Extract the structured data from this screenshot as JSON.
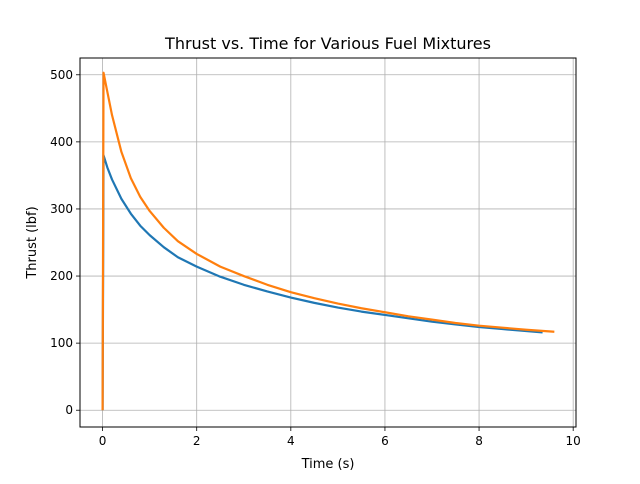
{
  "chart_data": {
    "type": "line",
    "title": "Thrust vs. Time for Various Fuel Mixtures",
    "xlabel": "Time (s)",
    "ylabel": "Thrust (lbf)",
    "xlim": [
      -0.48,
      10.06
    ],
    "ylim": [
      -25,
      525
    ],
    "xticks": [
      0,
      2,
      4,
      6,
      8,
      10
    ],
    "yticks": [
      0,
      100,
      200,
      300,
      400,
      500
    ],
    "grid": true,
    "series": [
      {
        "color": "#1f77b4",
        "x": [
          0,
          0.02,
          0.1,
          0.2,
          0.4,
          0.6,
          0.8,
          1.0,
          1.3,
          1.6,
          2.0,
          2.5,
          3.0,
          3.5,
          4.0,
          4.5,
          5.0,
          5.5,
          6.0,
          6.5,
          7.0,
          7.5,
          8.0,
          8.5,
          9.0,
          9.35
        ],
        "y": [
          0,
          380,
          362,
          344,
          315,
          293,
          275,
          261,
          243,
          228,
          214,
          199,
          187,
          177,
          168,
          160,
          153,
          147,
          142,
          137,
          132,
          128,
          124,
          121,
          118,
          116
        ]
      },
      {
        "color": "#ff7f0e",
        "x": [
          0,
          0.02,
          0.1,
          0.2,
          0.4,
          0.6,
          0.8,
          1.0,
          1.3,
          1.6,
          2.0,
          2.5,
          3.0,
          3.5,
          4.0,
          4.5,
          5.0,
          5.5,
          6.0,
          6.5,
          7.0,
          7.5,
          8.0,
          8.5,
          9.0,
          9.6
        ],
        "y": [
          0,
          503,
          475,
          440,
          385,
          346,
          318,
          297,
          272,
          252,
          233,
          214,
          200,
          187,
          176,
          167,
          159,
          152,
          146,
          140,
          135,
          130,
          126,
          123,
          120,
          117
        ]
      }
    ]
  }
}
